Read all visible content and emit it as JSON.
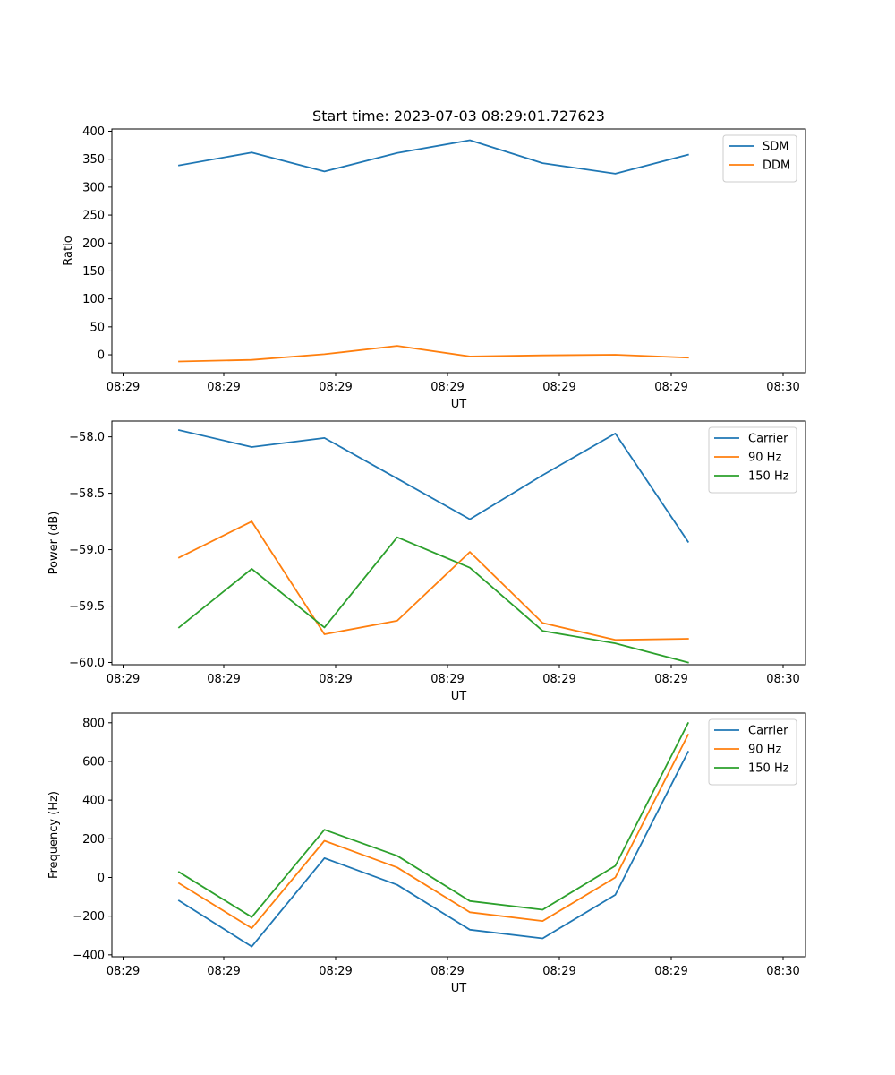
{
  "chart_data": [
    {
      "type": "line",
      "title": "Start time: 2023-07-03 08:29:01.727623",
      "xlabel": "UT",
      "ylabel": "Ratio",
      "ylim": [
        -32,
        404
      ],
      "yticks": [
        0,
        50,
        100,
        150,
        200,
        250,
        300,
        350,
        400
      ],
      "ytick_labels": [
        "0",
        "50",
        "100",
        "150",
        "200",
        "250",
        "300",
        "350",
        "400"
      ],
      "xlim": [
        0,
        6.2
      ],
      "xticks": [
        0.1,
        1.0,
        2.0,
        3.0,
        4.0,
        5.0,
        6.0
      ],
      "xtick_labels": [
        "08:29",
        "08:29",
        "08:29",
        "08:29",
        "08:29",
        "08:29",
        "08:30"
      ],
      "x": [
        0.6,
        1.25,
        1.9,
        2.55,
        3.2,
        3.85,
        4.5,
        5.15
      ],
      "legend": "top-right",
      "series": [
        {
          "name": "SDM",
          "color": "#1f77b4",
          "values": [
            339,
            362,
            328,
            361,
            384,
            343,
            324,
            358
          ]
        },
        {
          "name": "DDM",
          "color": "#ff7f0e",
          "values": [
            -12,
            -9,
            1,
            16,
            -3,
            -1,
            0,
            -5
          ]
        }
      ]
    },
    {
      "type": "line",
      "title": "",
      "xlabel": "UT",
      "ylabel": "Power (dB)",
      "ylim": [
        -60.02,
        -57.86
      ],
      "yticks": [
        -60.0,
        -59.5,
        -59.0,
        -58.5,
        -58.0
      ],
      "ytick_labels": [
        "−60.0",
        "−59.5",
        "−59.0",
        "−58.5",
        "−58.0"
      ],
      "xlim": [
        0,
        6.2
      ],
      "xticks": [
        0.1,
        1.0,
        2.0,
        3.0,
        4.0,
        5.0,
        6.0
      ],
      "xtick_labels": [
        "08:29",
        "08:29",
        "08:29",
        "08:29",
        "08:29",
        "08:29",
        "08:30"
      ],
      "x": [
        0.6,
        1.25,
        1.9,
        2.55,
        3.2,
        3.85,
        4.5,
        5.15
      ],
      "legend": "top-right",
      "series": [
        {
          "name": "Carrier",
          "color": "#1f77b4",
          "values": [
            -57.94,
            -58.09,
            -58.01,
            -58.37,
            -58.73,
            -58.34,
            -57.97,
            -58.93
          ]
        },
        {
          "name": "90 Hz",
          "color": "#ff7f0e",
          "values": [
            -59.07,
            -58.75,
            -59.75,
            -59.63,
            -59.02,
            -59.65,
            -59.8,
            -59.79
          ]
        },
        {
          "name": "150 Hz",
          "color": "#2ca02c",
          "values": [
            -59.69,
            -59.17,
            -59.69,
            -58.89,
            -59.16,
            -59.72,
            -59.83,
            -60.0
          ]
        }
      ]
    },
    {
      "type": "line",
      "title": "",
      "xlabel": "UT",
      "ylabel": "Frequency (Hz)",
      "ylim": [
        -410,
        850
      ],
      "yticks": [
        -400,
        -200,
        0,
        200,
        400,
        600,
        800
      ],
      "ytick_labels": [
        "−400",
        "−200",
        "0",
        "200",
        "400",
        "600",
        "800"
      ],
      "xlim": [
        0,
        6.2
      ],
      "xticks": [
        0.1,
        1.0,
        2.0,
        3.0,
        4.0,
        5.0,
        6.0
      ],
      "xtick_labels": [
        "08:29",
        "08:29",
        "08:29",
        "08:29",
        "08:29",
        "08:29",
        "08:30"
      ],
      "x": [
        0.6,
        1.25,
        1.9,
        2.55,
        3.2,
        3.85,
        4.5,
        5.15
      ],
      "legend": "top-right",
      "series": [
        {
          "name": "Carrier",
          "color": "#1f77b4",
          "values": [
            -120,
            -357,
            100,
            -38,
            -270,
            -315,
            -90,
            650
          ]
        },
        {
          "name": "90 Hz",
          "color": "#ff7f0e",
          "values": [
            -30,
            -262,
            190,
            52,
            -180,
            -225,
            0,
            738
          ]
        },
        {
          "name": "150 Hz",
          "color": "#2ca02c",
          "values": [
            28,
            -205,
            247,
            112,
            -122,
            -167,
            60,
            798
          ]
        }
      ]
    }
  ]
}
